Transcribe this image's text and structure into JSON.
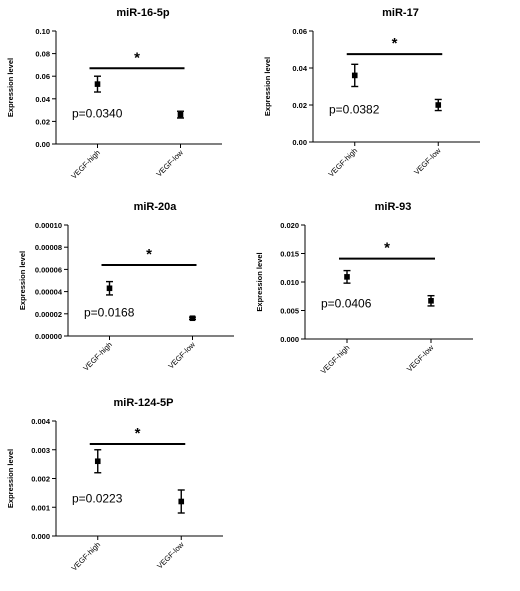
{
  "chart_data": [
    {
      "type": "scatter",
      "title": "miR-16-5p",
      "ylabel": "Expression level",
      "xlabel": "",
      "categories": [
        "VEGF-high",
        "VEGF-low"
      ],
      "values": [
        0.053,
        0.026
      ],
      "errors": [
        0.007,
        0.003
      ],
      "ylim": [
        0,
        0.1
      ],
      "yticks": [
        0.0,
        0.02,
        0.04,
        0.06,
        0.08,
        0.1
      ],
      "ytick_labels": [
        "0.00",
        "0.02",
        "0.04",
        "0.06",
        "0.08",
        "0.10"
      ],
      "sig_bar_y": 0.067,
      "sig_symbol": "*",
      "pvalue": "p=0.0340",
      "pvalue_y": 0.027
    },
    {
      "type": "scatter",
      "title": "miR-17",
      "ylabel": "Expression level",
      "xlabel": "",
      "categories": [
        "VEGF-high",
        "VEGF-low"
      ],
      "values": [
        0.036,
        0.02
      ],
      "errors": [
        0.006,
        0.003
      ],
      "ylim": [
        0,
        0.06
      ],
      "yticks": [
        0.0,
        0.02,
        0.04,
        0.06
      ],
      "ytick_labels": [
        "0.00",
        "0.02",
        "0.04",
        "0.06"
      ],
      "sig_bar_y": 0.0475,
      "sig_symbol": "*",
      "pvalue": "p=0.0382",
      "pvalue_y": 0.0175
    },
    {
      "type": "scatter",
      "title": "miR-20a",
      "ylabel": "Expression level",
      "xlabel": "",
      "categories": [
        "VEGF-high",
        "VEGF-low"
      ],
      "values": [
        4.3e-05,
        1.6e-05
      ],
      "errors": [
        6e-06,
        1e-06
      ],
      "ylim": [
        0,
        0.0001
      ],
      "yticks": [
        0.0,
        2e-05,
        4e-05,
        6e-05,
        8e-05,
        0.0001
      ],
      "ytick_labels": [
        "0.00000",
        "0.00002",
        "0.00004",
        "0.00006",
        "0.00008",
        "0.00010"
      ],
      "sig_bar_y": 6.4e-05,
      "sig_symbol": "*",
      "pvalue": "p=0.0168",
      "pvalue_y": 2.1e-05
    },
    {
      "type": "scatter",
      "title": "miR-93",
      "ylabel": "Expression level",
      "xlabel": "",
      "categories": [
        "VEGF-high",
        "VEGF-low"
      ],
      "values": [
        0.0109,
        0.0067
      ],
      "errors": [
        0.0011,
        0.0009
      ],
      "ylim": [
        0,
        0.02
      ],
      "yticks": [
        0.0,
        0.005,
        0.01,
        0.015,
        0.02
      ],
      "ytick_labels": [
        "0.000",
        "0.005",
        "0.010",
        "0.015",
        "0.020"
      ],
      "sig_bar_y": 0.0141,
      "sig_symbol": "*",
      "pvalue": "p=0.0406",
      "pvalue_y": 0.0062
    },
    {
      "type": "scatter",
      "title": "miR-124-5P",
      "ylabel": "Expression level",
      "xlabel": "",
      "categories": [
        "VEGF-high",
        "VEGF-low"
      ],
      "values": [
        0.0026,
        0.0012
      ],
      "errors": [
        0.0004,
        0.0004
      ],
      "ylim": [
        0,
        0.004
      ],
      "yticks": [
        0.0,
        0.001,
        0.002,
        0.003,
        0.004
      ],
      "ytick_labels": [
        "0.000",
        "0.001",
        "0.002",
        "0.003",
        "0.004"
      ],
      "sig_bar_y": 0.0032,
      "sig_symbol": "*",
      "pvalue": "p=0.0223",
      "pvalue_y": 0.0013
    }
  ]
}
